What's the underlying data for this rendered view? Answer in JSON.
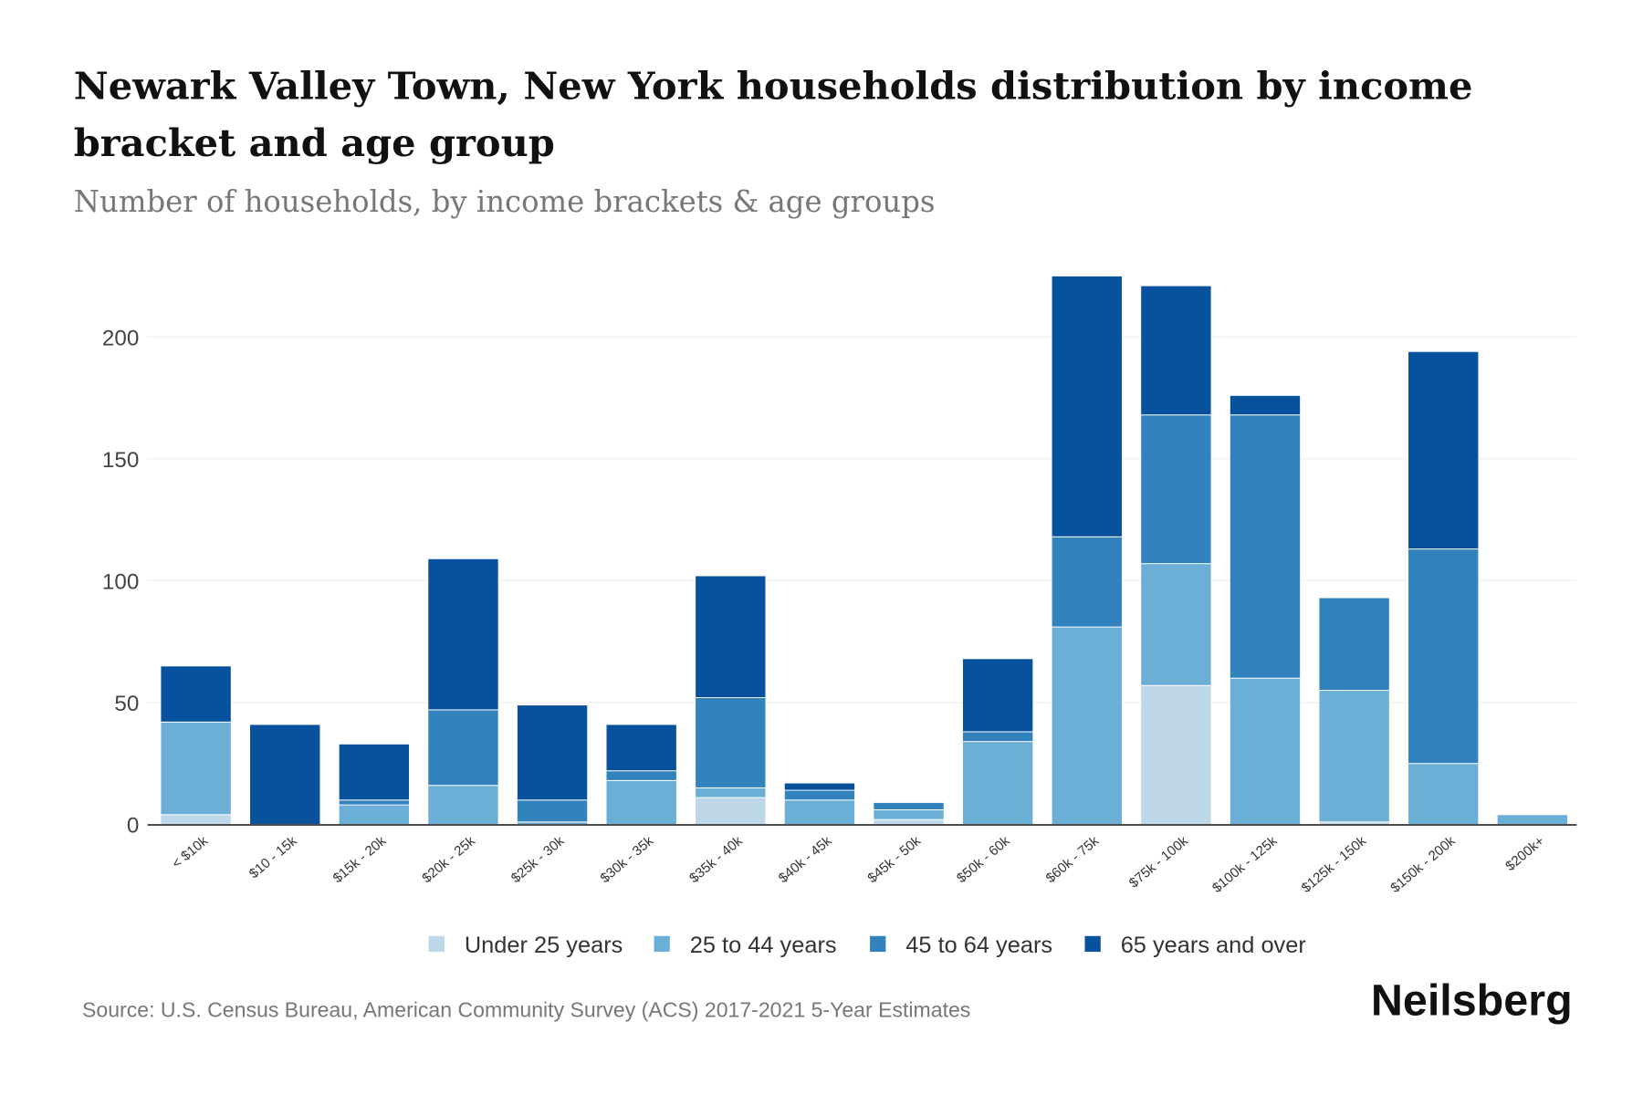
{
  "chart_data": {
    "type": "bar",
    "stacked": true,
    "title_line1": "Newark Valley Town, New York households distribution by income",
    "title_line2": "bracket and age group",
    "subtitle": "Number of households, by income brackets & age groups",
    "xlabel": "",
    "ylabel": "",
    "ylim": [
      0,
      230
    ],
    "yticks": [
      "0",
      "50",
      "100",
      "150",
      "200"
    ],
    "grid": true,
    "legend_position": "bottom",
    "categories": [
      "< $10k",
      "$10 - 15k",
      "$15k - 20k",
      "$20k - 25k",
      "$25k - 30k",
      "$30k - 35k",
      "$35k - 40k",
      "$40k - 45k",
      "$45k - 50k",
      "$50k - 60k",
      "$60k - 75k",
      "$75k - 100k",
      "$100k - 125k",
      "$125k - 150k",
      "$150k - 200k",
      "$200k+"
    ],
    "series": [
      {
        "name": "Under 25 years",
        "color": "#bcd8e8",
        "values": [
          4,
          0,
          0,
          0,
          0,
          0,
          11,
          0,
          2,
          0,
          0,
          57,
          0,
          1,
          0,
          0
        ]
      },
      {
        "name": "25 to 44 years",
        "color": "#6baed6",
        "values": [
          38,
          0,
          8,
          16,
          1,
          18,
          4,
          10,
          4,
          34,
          81,
          50,
          60,
          54,
          25,
          4
        ]
      },
      {
        "name": "45 to 64 years",
        "color": "#3182bd",
        "values": [
          0,
          0,
          2,
          31,
          9,
          4,
          37,
          4,
          3,
          4,
          37,
          61,
          108,
          38,
          88,
          0
        ]
      },
      {
        "name": "65 years and over",
        "color": "#08519c",
        "values": [
          23,
          41,
          23,
          62,
          39,
          19,
          50,
          3,
          0,
          30,
          107,
          53,
          8,
          0,
          81,
          0
        ]
      }
    ]
  },
  "footer": {
    "source": "Source: U.S. Census Bureau, American Community Survey (ACS) 2017-2021 5-Year Estimates",
    "logo": "Neilsberg"
  }
}
